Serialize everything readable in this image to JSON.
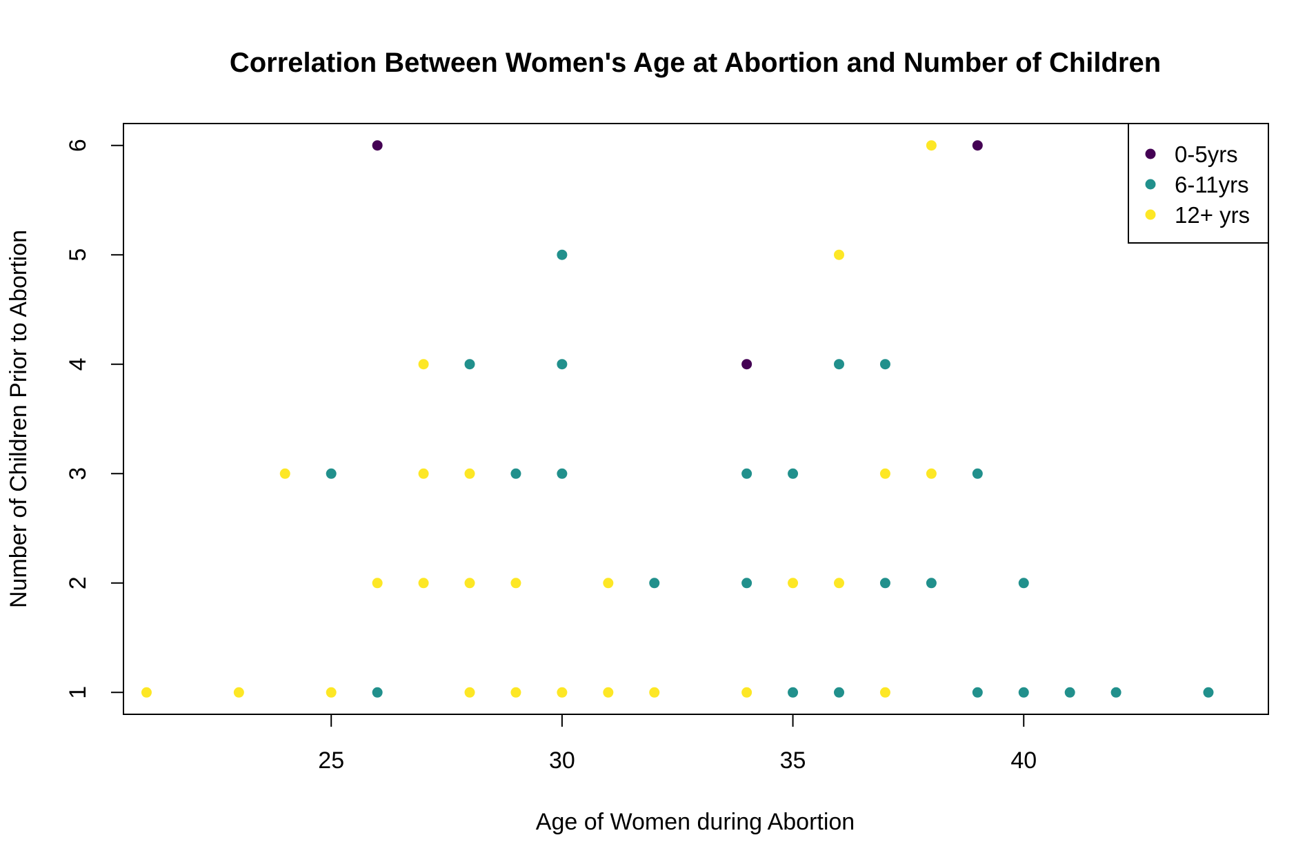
{
  "chart_data": {
    "type": "scatter",
    "title": "Correlation Between Women's Age at Abortion and Number of Children",
    "xlabel": "Age of Women during Abortion",
    "ylabel": "Number of Children Prior to Abortion",
    "xlim": [
      20.5,
      45.3
    ],
    "ylim": [
      0.8,
      6.2
    ],
    "xticks": [
      25,
      30,
      35,
      40
    ],
    "yticks": [
      1,
      2,
      3,
      4,
      5,
      6
    ],
    "grid": false,
    "legend_position": "top-right",
    "series": [
      {
        "name": "0-5yrs",
        "color": "#440154",
        "points": [
          [
            26,
            6
          ],
          [
            39,
            6
          ],
          [
            34,
            4
          ]
        ]
      },
      {
        "name": "6-11yrs",
        "color": "#21908C",
        "points": [
          [
            30,
            5
          ],
          [
            28,
            4
          ],
          [
            30,
            4
          ],
          [
            36,
            4
          ],
          [
            37,
            4
          ],
          [
            25,
            3
          ],
          [
            29,
            3
          ],
          [
            30,
            3
          ],
          [
            34,
            3
          ],
          [
            35,
            3
          ],
          [
            39,
            3
          ],
          [
            32,
            2
          ],
          [
            34,
            2
          ],
          [
            37,
            2
          ],
          [
            38,
            2
          ],
          [
            40,
            2
          ],
          [
            26,
            1
          ],
          [
            35,
            1
          ],
          [
            36,
            1
          ],
          [
            39,
            1
          ],
          [
            40,
            1
          ],
          [
            41,
            1
          ],
          [
            42,
            1
          ],
          [
            44,
            1
          ]
        ]
      },
      {
        "name": "12+ yrs",
        "color": "#FDE725",
        "points": [
          [
            38,
            6
          ],
          [
            36,
            5
          ],
          [
            27,
            4
          ],
          [
            24,
            3
          ],
          [
            27,
            3
          ],
          [
            28,
            3
          ],
          [
            37,
            3
          ],
          [
            38,
            3
          ],
          [
            26,
            2
          ],
          [
            27,
            2
          ],
          [
            28,
            2
          ],
          [
            29,
            2
          ],
          [
            31,
            2
          ],
          [
            35,
            2
          ],
          [
            36,
            2
          ],
          [
            21,
            1
          ],
          [
            23,
            1
          ],
          [
            25,
            1
          ],
          [
            28,
            1
          ],
          [
            29,
            1
          ],
          [
            30,
            1
          ],
          [
            31,
            1
          ],
          [
            32,
            1
          ],
          [
            34,
            1
          ],
          [
            37,
            1
          ]
        ]
      }
    ]
  }
}
